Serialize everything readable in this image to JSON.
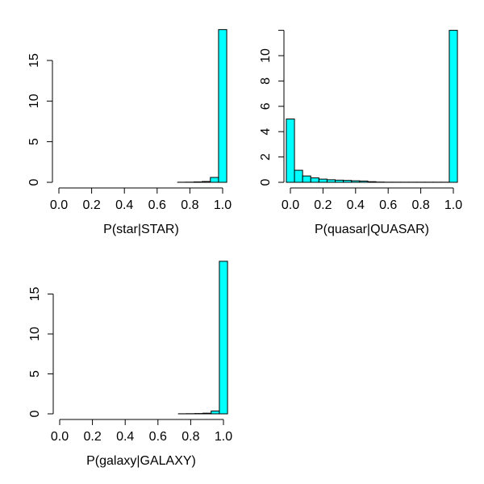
{
  "colors": {
    "bar_fill": "#00FFFF",
    "bar_stroke": "#000000"
  },
  "chart_data": [
    {
      "type": "bar",
      "title": "",
      "xlabel": "P(star|STAR)",
      "ylabel": "",
      "bin_width": 0.05,
      "bin_centers": [
        0,
        0.05,
        0.1,
        0.15,
        0.2,
        0.25,
        0.3,
        0.35,
        0.4,
        0.45,
        0.5,
        0.55,
        0.6,
        0.65,
        0.7,
        0.75,
        0.8,
        0.85,
        0.9,
        0.95,
        1.0
      ],
      "values": [
        0,
        0,
        0,
        0,
        0,
        0,
        0,
        0,
        0,
        0,
        0,
        0,
        0,
        0,
        0,
        0.01,
        0.02,
        0.05,
        0.1,
        0.6,
        18.8
      ],
      "xlim": [
        -0.025,
        1.025
      ],
      "ylim": [
        0,
        18.8
      ],
      "xticks": [
        "0.0",
        "0.2",
        "0.4",
        "0.6",
        "0.8",
        "1.0"
      ],
      "yticks": [
        "0",
        "5",
        "10",
        "15"
      ]
    },
    {
      "type": "bar",
      "title": "",
      "xlabel": "P(quasar|QUASAR)",
      "ylabel": "",
      "bin_width": 0.05,
      "bin_centers": [
        0,
        0.05,
        0.1,
        0.15,
        0.2,
        0.25,
        0.3,
        0.35,
        0.4,
        0.45,
        0.5,
        0.55,
        0.6,
        0.65,
        0.7,
        0.75,
        0.8,
        0.85,
        0.9,
        0.95,
        1.0
      ],
      "values": [
        5.0,
        0.95,
        0.5,
        0.35,
        0.25,
        0.2,
        0.17,
        0.15,
        0.12,
        0.1,
        0.05,
        0.02,
        0.01,
        0.01,
        0.01,
        0.01,
        0.01,
        0.01,
        0.01,
        0.01,
        12.0
      ],
      "xlim": [
        -0.025,
        1.025
      ],
      "ylim": [
        0,
        12
      ],
      "xticks": [
        "0.0",
        "0.2",
        "0.4",
        "0.6",
        "0.8",
        "1.0"
      ],
      "yticks": [
        "0",
        "2",
        "4",
        "6",
        "8",
        "10",
        ""
      ]
    },
    {
      "type": "bar",
      "title": "",
      "xlabel": "P(galaxy|GALAXY)",
      "ylabel": "",
      "bin_width": 0.05,
      "bin_centers": [
        0,
        0.05,
        0.1,
        0.15,
        0.2,
        0.25,
        0.3,
        0.35,
        0.4,
        0.45,
        0.5,
        0.55,
        0.6,
        0.65,
        0.7,
        0.75,
        0.8,
        0.85,
        0.9,
        0.95,
        1.0
      ],
      "values": [
        0,
        0,
        0,
        0,
        0,
        0,
        0,
        0,
        0,
        0,
        0,
        0,
        0,
        0,
        0,
        0.01,
        0.02,
        0.04,
        0.08,
        0.35,
        19.1
      ],
      "xlim": [
        -0.025,
        1.025
      ],
      "ylim": [
        0,
        19.1
      ],
      "xticks": [
        "0.0",
        "0.2",
        "0.4",
        "0.6",
        "0.8",
        "1.0"
      ],
      "yticks": [
        "0",
        "5",
        "10",
        "15"
      ]
    }
  ]
}
